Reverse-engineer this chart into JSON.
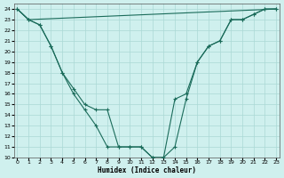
{
  "title": "",
  "xlabel": "Humidex (Indice chaleur)",
  "background_color": "#cff0ee",
  "grid_color": "#aad8d5",
  "line_color": "#1a6b5a",
  "ylim": [
    10,
    24.5
  ],
  "xlim": [
    -0.3,
    23.3
  ],
  "yticks": [
    10,
    11,
    12,
    13,
    14,
    15,
    16,
    17,
    18,
    19,
    20,
    21,
    22,
    23,
    24
  ],
  "xticks": [
    0,
    1,
    2,
    3,
    4,
    5,
    6,
    7,
    8,
    9,
    10,
    11,
    12,
    13,
    14,
    15,
    16,
    17,
    18,
    19,
    20,
    21,
    22,
    23
  ],
  "line_flat": {
    "x": [
      0,
      1,
      23
    ],
    "y": [
      24,
      23,
      24
    ]
  },
  "line_upper": {
    "x": [
      0,
      1,
      2,
      3,
      4,
      5,
      6,
      7,
      8,
      9,
      10,
      11,
      12,
      13,
      14,
      15,
      16,
      17,
      18,
      19,
      20,
      21,
      22,
      23
    ],
    "y": [
      24,
      23,
      22.5,
      20.5,
      18,
      16.5,
      15,
      14.5,
      14.5,
      11,
      11,
      11,
      10,
      10,
      15.5,
      16,
      19,
      20.5,
      21,
      23,
      23,
      23.5,
      24,
      24
    ]
  },
  "line_lower": {
    "x": [
      0,
      1,
      2,
      3,
      4,
      5,
      6,
      7,
      8,
      9,
      10,
      11,
      12,
      13,
      14,
      15,
      16,
      17,
      18,
      19,
      20,
      21,
      22,
      23
    ],
    "y": [
      24,
      23,
      22.5,
      20.5,
      18,
      16,
      14.5,
      13,
      11,
      11,
      11,
      11,
      10,
      10,
      11,
      15.5,
      19,
      20.5,
      21,
      23,
      23,
      23.5,
      24,
      24
    ]
  }
}
